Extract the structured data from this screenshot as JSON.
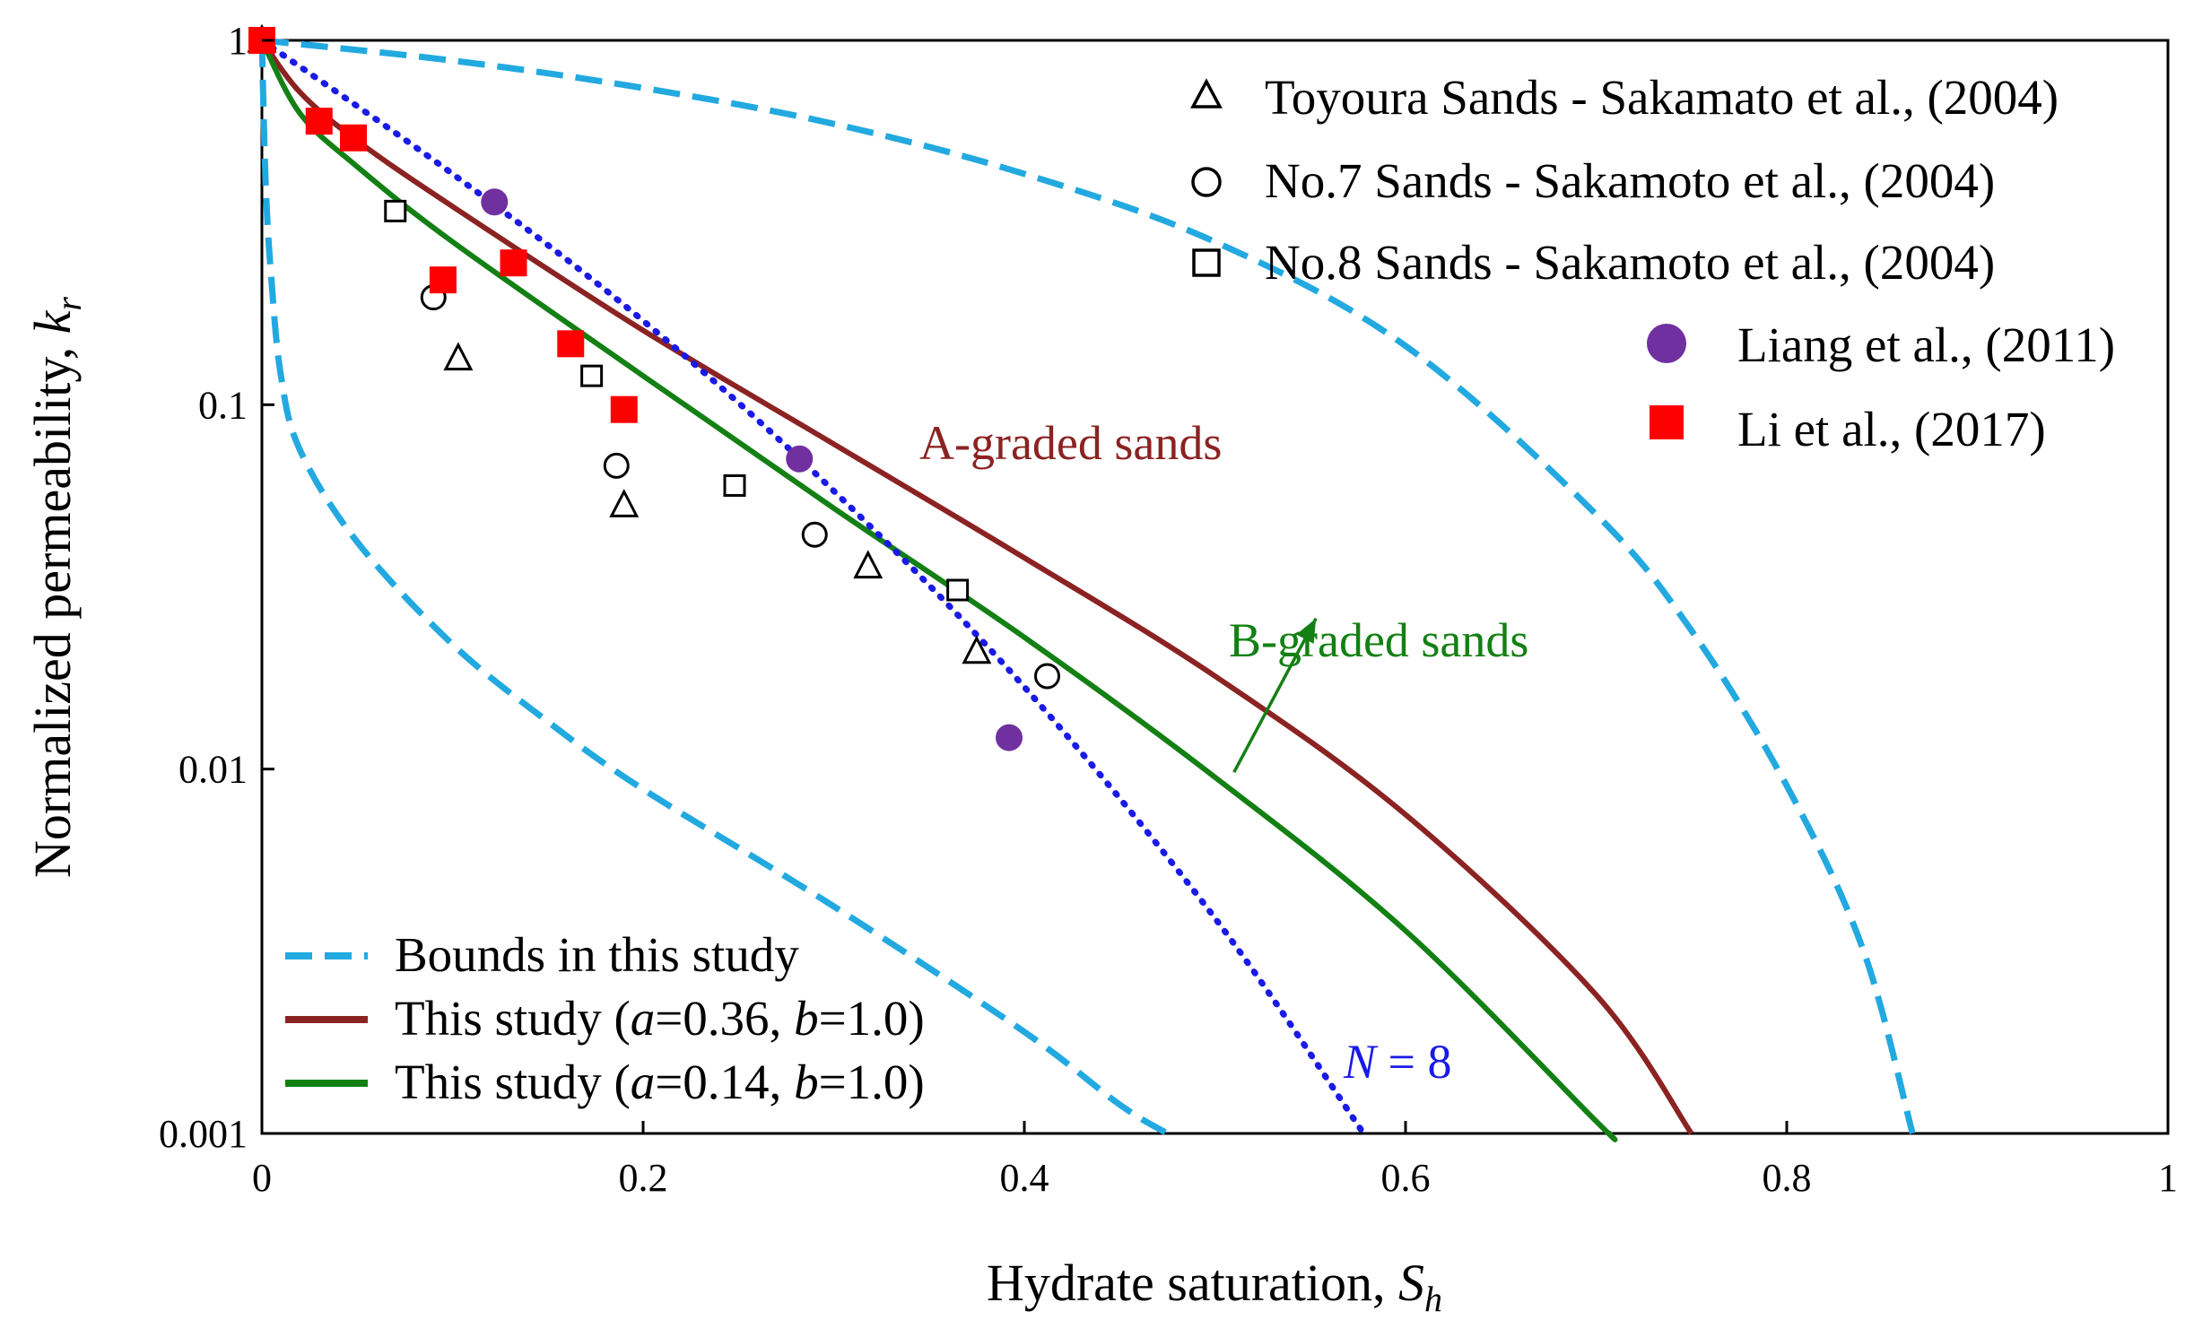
{
  "chart_data": {
    "type": "scatter",
    "title": "",
    "xlabel": "Hydrate saturation, ",
    "xlabel_var": "S",
    "xlabel_sub": "h",
    "ylabel": "Normalized permeability, ",
    "ylabel_var": "k",
    "ylabel_sub": "r",
    "xlim": [
      0,
      1
    ],
    "ylim": [
      0.001,
      1
    ],
    "yscale": "log",
    "xticks": [
      0,
      0.2,
      0.4,
      0.6,
      0.8,
      1
    ],
    "xtick_labels": [
      "0",
      "0.2",
      "0.4",
      "0.6",
      "0.8",
      "1"
    ],
    "yticks": [
      0.001,
      0.01,
      0.1,
      1
    ],
    "ytick_labels": [
      "0.001",
      "0.01",
      "0.1",
      "1"
    ],
    "colors": {
      "bounds": "#22a9e0",
      "a_graded": "#8b2323",
      "b_graded": "#138013",
      "n8": "#1a1ae6",
      "liang": "#7030a0",
      "li": "#ff0000",
      "marker_outline": "#000000"
    },
    "lines": [
      {
        "name": "Bounds in this study",
        "style": "dashed",
        "color_key": "bounds",
        "x": [
          0,
          0.1,
          0.2,
          0.3,
          0.4,
          0.5,
          0.6,
          0.7,
          0.75,
          0.8,
          0.84,
          0.866
        ],
        "y": [
          1,
          0.88,
          0.74,
          0.59,
          0.43,
          0.28,
          0.145,
          0.05,
          0.024,
          0.009,
          0.0032,
          0.001
        ]
      },
      {
        "name": "Bounds in this study (lower)",
        "style": "dashed",
        "color_key": "bounds",
        "x": [
          0,
          0.002,
          0.005,
          0.01,
          0.02,
          0.05,
          0.1,
          0.15,
          0.2,
          0.3,
          0.4,
          0.45,
          0.475
        ],
        "y": [
          1,
          0.4,
          0.22,
          0.12,
          0.075,
          0.042,
          0.022,
          0.0135,
          0.0088,
          0.0042,
          0.0019,
          0.0012,
          0.001
        ]
      },
      {
        "name": "This study (a=0.36, b=1.0)",
        "style": "solid",
        "color_key": "a_graded",
        "x": [
          0,
          0.02,
          0.05,
          0.1,
          0.2,
          0.3,
          0.4,
          0.5,
          0.6,
          0.7,
          0.75
        ],
        "y": [
          1,
          0.72,
          0.53,
          0.35,
          0.16,
          0.078,
          0.038,
          0.018,
          0.0075,
          0.0024,
          0.001
        ]
      },
      {
        "name": "This study (a=0.14, b=1.0)",
        "style": "solid",
        "color_key": "b_graded",
        "x": [
          0,
          0.02,
          0.05,
          0.1,
          0.2,
          0.3,
          0.4,
          0.5,
          0.6,
          0.7,
          0.707
        ],
        "y": [
          1,
          0.63,
          0.45,
          0.28,
          0.12,
          0.052,
          0.023,
          0.0095,
          0.0036,
          0.00108,
          0.001
        ]
      },
      {
        "name": "N = 8",
        "style": "dotted",
        "color_key": "n8",
        "x": [
          0,
          0.1,
          0.2,
          0.3,
          0.4,
          0.5,
          0.578
        ],
        "y": [
          1,
          0.43,
          0.17,
          0.058,
          0.0168,
          0.0039,
          0.001
        ]
      }
    ],
    "scatter_series": [
      {
        "name": "Toyoura Sands - Sakamato et al., (2004)",
        "marker": "triangle",
        "filled": false,
        "color_key": "marker_outline",
        "x": [
          0.0,
          0.103,
          0.19,
          0.318,
          0.375
        ],
        "y": [
          1.0,
          0.134,
          0.053,
          0.036,
          0.021
        ]
      },
      {
        "name": "No.7 Sands - Sakamoto et al., (2004)",
        "marker": "circle",
        "filled": false,
        "color_key": "marker_outline",
        "x": [
          0.0,
          0.09,
          0.186,
          0.29,
          0.412
        ],
        "y": [
          1.0,
          0.197,
          0.068,
          0.044,
          0.018
        ]
      },
      {
        "name": "No.8 Sands - Sakamoto et al., (2004)",
        "marker": "square",
        "filled": false,
        "color_key": "marker_outline",
        "x": [
          0.0,
          0.07,
          0.173,
          0.248,
          0.365
        ],
        "y": [
          1.0,
          0.34,
          0.12,
          0.06,
          0.031
        ]
      },
      {
        "name": "Liang et al., (2011)",
        "marker": "circle",
        "filled": true,
        "color_key": "liang",
        "x": [
          0.122,
          0.282,
          0.392
        ],
        "y": [
          0.36,
          0.071,
          0.0122
        ]
      },
      {
        "name": "Li et al., (2017)",
        "marker": "square",
        "filled": true,
        "color_key": "li",
        "x": [
          0.0,
          0.03,
          0.048,
          0.095,
          0.132,
          0.162,
          0.19
        ],
        "y": [
          1.0,
          0.6,
          0.54,
          0.22,
          0.245,
          0.147,
          0.097
        ]
      }
    ],
    "annotations": [
      {
        "text": "A-graded sands",
        "color_key": "a_graded",
        "x": 0.348,
        "y": 0.078
      },
      {
        "text": "B-graded sands",
        "color_key": "b_graded",
        "x": 0.511,
        "y": 0.0185
      },
      {
        "text_var": "N",
        "text": " = 8",
        "color_key": "n8",
        "x": 0.573,
        "y": 0.00185
      }
    ],
    "arrow": {
      "from": [
        0.51,
        0.0098
      ],
      "to": [
        0.553,
        0.0259
      ],
      "color_key": "b_graded"
    },
    "legend_top": {
      "position": "top-right",
      "entries": [
        "Toyoura Sands - Sakamato et al., (2004)",
        "No.7 Sands - Sakamoto et al., (2004)",
        "No.8 Sands - Sakamoto et al., (2004)",
        "Liang et al., (2011)",
        "Li et al., (2017)"
      ]
    },
    "legend_bottom": {
      "position": "bottom-left",
      "entries": [
        {
          "label": "Bounds in this study"
        },
        {
          "pre": "This study (",
          "v1": "a",
          "mid": "=0.36, ",
          "v2": "b",
          "post": "=1.0)"
        },
        {
          "pre": "This study (",
          "v1": "a",
          "mid": "=0.14, ",
          "v2": "b",
          "post": "=1.0)"
        }
      ]
    }
  }
}
